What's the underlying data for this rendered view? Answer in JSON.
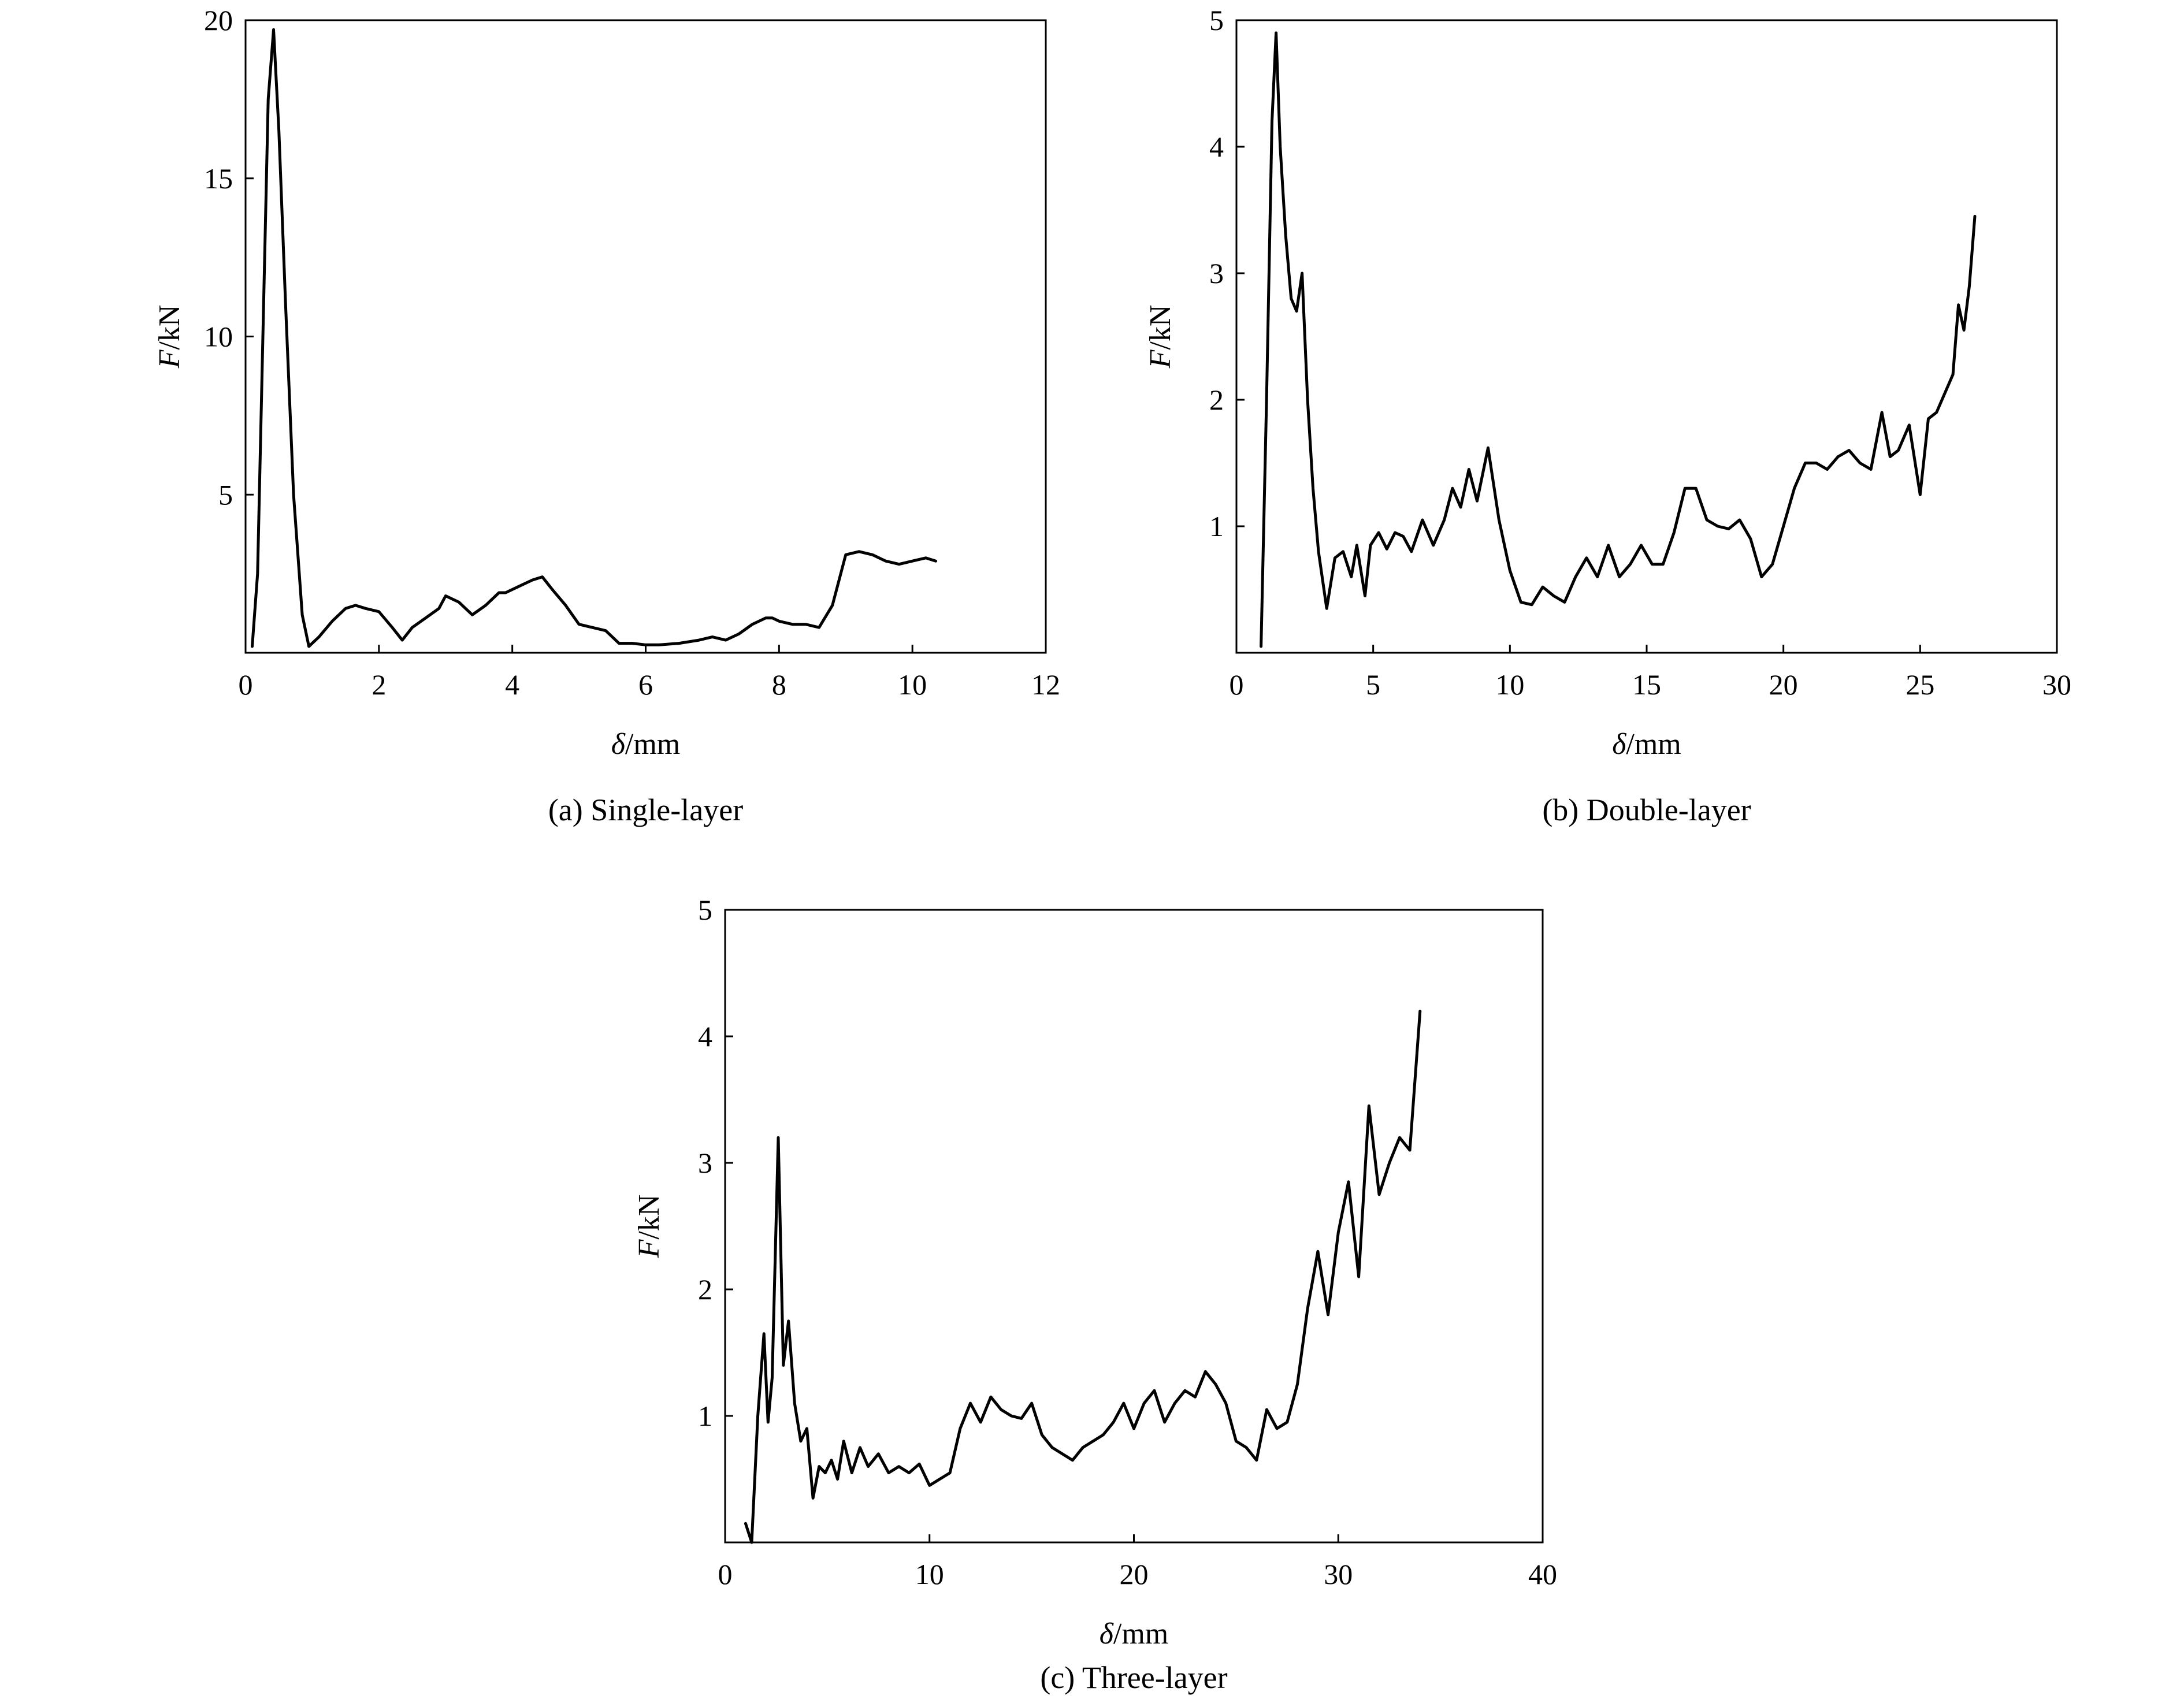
{
  "chart_data": [
    {
      "type": "line",
      "caption": "(a) Single-layer",
      "xlabel_symbol": "δ",
      "xlabel_unit": "/mm",
      "ylabel_symbol": "F",
      "ylabel_unit": "/kN",
      "xlim": [
        0,
        12
      ],
      "ylim": [
        0,
        20
      ],
      "xticks": [
        "0",
        "2",
        "4",
        "6",
        "8",
        "10",
        "12"
      ],
      "yticks": [
        "5",
        "10",
        "15",
        "20"
      ],
      "yticks_values": [
        5,
        10,
        15,
        20
      ],
      "xticks_values": [
        0,
        2,
        4,
        6,
        8,
        10,
        12
      ],
      "origin_label": "0",
      "grid": false,
      "x": [
        0.1,
        0.18,
        0.26,
        0.34,
        0.42,
        0.5,
        0.6,
        0.72,
        0.85,
        0.95,
        1.1,
        1.3,
        1.5,
        1.65,
        1.8,
        2.0,
        2.2,
        2.35,
        2.5,
        2.7,
        2.9,
        3.0,
        3.2,
        3.4,
        3.6,
        3.8,
        3.9,
        4.1,
        4.3,
        4.45,
        4.6,
        4.8,
        5.0,
        5.2,
        5.4,
        5.6,
        5.8,
        6.0,
        6.2,
        6.5,
        6.8,
        7.0,
        7.2,
        7.4,
        7.6,
        7.8,
        7.9,
        8.0,
        8.2,
        8.4,
        8.6,
        8.8,
        9.0,
        9.2,
        9.4,
        9.6,
        9.8,
        10.0,
        10.2,
        10.35
      ],
      "y": [
        0.2,
        2.5,
        10.0,
        17.5,
        19.7,
        16.5,
        11.0,
        5.0,
        1.2,
        0.2,
        0.5,
        1.0,
        1.4,
        1.5,
        1.4,
        1.3,
        0.8,
        0.4,
        0.8,
        1.1,
        1.4,
        1.8,
        1.6,
        1.2,
        1.5,
        1.9,
        1.9,
        2.1,
        2.3,
        2.4,
        2.0,
        1.5,
        0.9,
        0.8,
        0.7,
        0.3,
        0.3,
        0.25,
        0.25,
        0.3,
        0.4,
        0.5,
        0.4,
        0.6,
        0.9,
        1.1,
        1.1,
        1.0,
        0.9,
        0.9,
        0.8,
        1.5,
        3.1,
        3.2,
        3.1,
        2.9,
        2.8,
        2.9,
        3.0,
        2.9
      ]
    },
    {
      "type": "line",
      "caption": "(b) Double-layer",
      "xlabel_symbol": "δ",
      "xlabel_unit": "/mm",
      "ylabel_symbol": "F",
      "ylabel_unit": "/kN",
      "xlim": [
        0,
        30
      ],
      "ylim": [
        0,
        5
      ],
      "xticks": [
        "0",
        "5",
        "10",
        "15",
        "20",
        "25",
        "30"
      ],
      "yticks": [
        "1",
        "2",
        "3",
        "4",
        "5"
      ],
      "yticks_values": [
        1,
        2,
        3,
        4,
        5
      ],
      "xticks_values": [
        0,
        5,
        10,
        15,
        20,
        25,
        30
      ],
      "origin_label": "0",
      "grid": false,
      "x": [
        0.9,
        1.1,
        1.3,
        1.45,
        1.6,
        1.8,
        2.0,
        2.2,
        2.4,
        2.6,
        2.8,
        3.0,
        3.3,
        3.6,
        3.9,
        4.2,
        4.4,
        4.7,
        4.9,
        5.2,
        5.5,
        5.8,
        6.1,
        6.4,
        6.8,
        7.2,
        7.6,
        7.9,
        8.2,
        8.5,
        8.8,
        9.2,
        9.6,
        10.0,
        10.4,
        10.8,
        11.2,
        11.6,
        12.0,
        12.4,
        12.8,
        13.2,
        13.6,
        14.0,
        14.4,
        14.8,
        15.2,
        15.6,
        16.0,
        16.4,
        16.8,
        17.2,
        17.6,
        18.0,
        18.4,
        18.8,
        19.2,
        19.6,
        20.0,
        20.4,
        20.8,
        21.2,
        21.6,
        22.0,
        22.4,
        22.8,
        23.2,
        23.6,
        23.9,
        24.2,
        24.6,
        25.0,
        25.3,
        25.6,
        25.9,
        26.2,
        26.4,
        26.6,
        26.8,
        27.0
      ],
      "y": [
        0.05,
        2.0,
        4.2,
        4.9,
        4.0,
        3.3,
        2.8,
        2.7,
        3.0,
        2.0,
        1.3,
        0.8,
        0.35,
        0.75,
        0.8,
        0.6,
        0.85,
        0.45,
        0.85,
        0.95,
        0.82,
        0.95,
        0.92,
        0.8,
        1.05,
        0.85,
        1.05,
        1.3,
        1.15,
        1.45,
        1.2,
        1.62,
        1.05,
        0.65,
        0.4,
        0.38,
        0.52,
        0.45,
        0.4,
        0.6,
        0.75,
        0.6,
        0.85,
        0.6,
        0.7,
        0.85,
        0.7,
        0.7,
        0.95,
        1.3,
        1.3,
        1.05,
        1.0,
        0.98,
        1.05,
        0.9,
        0.6,
        0.7,
        1.0,
        1.3,
        1.5,
        1.5,
        1.45,
        1.55,
        1.6,
        1.5,
        1.45,
        1.9,
        1.55,
        1.6,
        1.8,
        1.25,
        1.85,
        1.9,
        2.05,
        2.2,
        2.75,
        2.55,
        2.9,
        3.45
      ]
    },
    {
      "type": "line",
      "caption": "(c) Three-layer",
      "xlabel_symbol": "δ",
      "xlabel_unit": "/mm",
      "ylabel_symbol": "F",
      "ylabel_unit": "/kN",
      "xlim": [
        0,
        40
      ],
      "ylim": [
        0,
        5
      ],
      "xticks": [
        "0",
        "10",
        "20",
        "30",
        "40"
      ],
      "yticks": [
        "1",
        "2",
        "3",
        "4",
        "5"
      ],
      "yticks_values": [
        1,
        2,
        3,
        4,
        5
      ],
      "xticks_values": [
        0,
        10,
        20,
        30,
        40
      ],
      "origin_label": "0",
      "grid": false,
      "x": [
        1.0,
        1.3,
        1.6,
        1.9,
        2.1,
        2.3,
        2.6,
        2.85,
        3.1,
        3.4,
        3.7,
        4.0,
        4.3,
        4.6,
        4.9,
        5.2,
        5.5,
        5.8,
        6.2,
        6.6,
        7.0,
        7.5,
        8.0,
        8.5,
        9.0,
        9.5,
        10.0,
        10.5,
        11.0,
        11.5,
        12.0,
        12.5,
        13.0,
        13.5,
        14.0,
        14.5,
        15.0,
        15.5,
        16.0,
        16.5,
        17.0,
        17.5,
        18.0,
        18.5,
        19.0,
        19.5,
        20.0,
        20.5,
        21.0,
        21.5,
        22.0,
        22.5,
        23.0,
        23.5,
        24.0,
        24.5,
        25.0,
        25.5,
        26.0,
        26.5,
        27.0,
        27.5,
        28.0,
        28.5,
        29.0,
        29.5,
        30.0,
        30.5,
        31.0,
        31.5,
        32.0,
        32.5,
        33.0,
        33.5,
        34.0
      ],
      "y": [
        0.15,
        0.0,
        1.0,
        1.65,
        0.95,
        1.3,
        3.2,
        1.4,
        1.75,
        1.1,
        0.8,
        0.9,
        0.35,
        0.6,
        0.55,
        0.65,
        0.5,
        0.8,
        0.55,
        0.75,
        0.6,
        0.7,
        0.55,
        0.6,
        0.55,
        0.62,
        0.45,
        0.5,
        0.55,
        0.9,
        1.1,
        0.95,
        1.15,
        1.05,
        1.0,
        0.98,
        1.1,
        0.85,
        0.75,
        0.7,
        0.65,
        0.75,
        0.8,
        0.85,
        0.95,
        1.1,
        0.9,
        1.1,
        1.2,
        0.95,
        1.1,
        1.2,
        1.15,
        1.35,
        1.25,
        1.1,
        0.8,
        0.75,
        0.65,
        1.05,
        0.9,
        0.95,
        1.25,
        1.85,
        2.3,
        1.8,
        2.45,
        2.85,
        2.1,
        3.45,
        2.75,
        3.0,
        3.2,
        3.1,
        4.2
      ]
    }
  ]
}
